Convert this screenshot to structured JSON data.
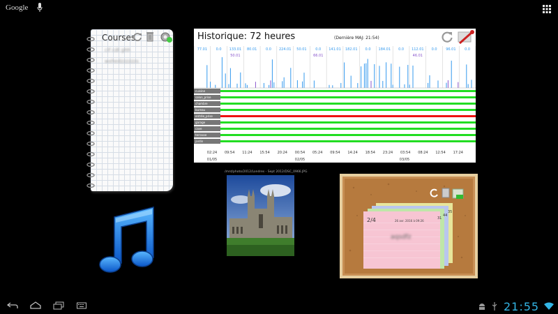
{
  "status_bar": {
    "search_label": "Google"
  },
  "notepad": {
    "title": "Courses",
    "items": [
      "cif cdt ghh",
      "wxhedzzzzzzs"
    ]
  },
  "history": {
    "title": "Historique: 72 heures",
    "last_update": "(Dernière MAJ: 21:54)",
    "top_labels": [
      "77.01",
      "0.0",
      "133.01",
      "80.01",
      "0.0",
      "224.01",
      "50.01",
      "0.0",
      "141.01",
      "182.01",
      "0.0",
      "184.01",
      "0.0",
      "112.01",
      "0.0",
      "96.01",
      "0.0"
    ],
    "sub_labels": [
      "50.01",
      "66.01",
      "46.01"
    ],
    "rows": [
      {
        "label": "cuisine",
        "status": "on"
      },
      {
        "label": "salon_prise",
        "status": "on"
      },
      {
        "label": "chambre",
        "status": "on"
      },
      {
        "label": "bureau",
        "status": "on"
      },
      {
        "label": "entrée_prise",
        "status": "off"
      },
      {
        "label": "garage",
        "status": "on"
      },
      {
        "label": "cave",
        "status": "on"
      },
      {
        "label": "terrasse",
        "status": "on"
      },
      {
        "label": "jardin",
        "status": "on"
      }
    ],
    "time_ticks": [
      "02:24",
      "09:54",
      "11:24",
      "15:54",
      "20:24",
      "00:54",
      "05:24",
      "09:54",
      "14:24",
      "18:54",
      "23:24",
      "03:54",
      "08:24",
      "12:54",
      "17:24"
    ],
    "dates": [
      "01/05",
      "02/05",
      "03/05"
    ],
    "colors": {
      "on": "#22dd22",
      "off": "#ee1111",
      "spike": "#3399ee",
      "spike_alt": "#8855cc"
    }
  },
  "photo": {
    "caption": "/mnt/photo/2012/Londres - Sept 2012/DSC_0966.JPG"
  },
  "cork": {
    "page": "2/4",
    "date": "26 avr. 2016 à 09:26",
    "note_text": "aqsdfz",
    "tab_numbers": [
      "35",
      "44",
      "31"
    ]
  },
  "clock": {
    "time": "21:55"
  }
}
